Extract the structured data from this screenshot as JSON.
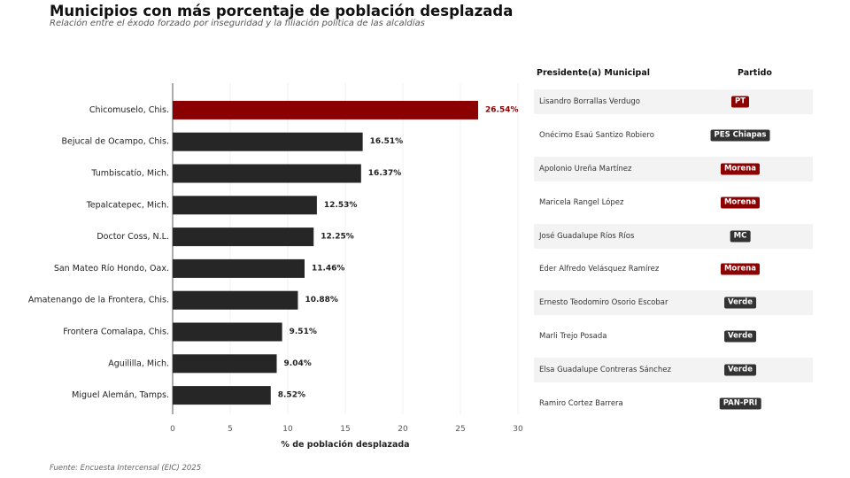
{
  "title": "Municipios con más porcentaje de población desplazada",
  "subtitle": "Relación entre el éxodo forzado por inseguridad y la filiación política de las alcaldías",
  "source": "Fuente: Encuesta Intercensal (EIC) 2025",
  "colors": {
    "highlight": "#8b0000",
    "bar": "#262626",
    "grid": "#f0f0f0",
    "axis": "#333333"
  },
  "chart_data": {
    "type": "bar",
    "orientation": "horizontal",
    "categories": [
      "Chicomuselo, Chis.",
      "Bejucal de Ocampo, Chis.",
      "Tumbiscatío, Mich.",
      "Tepalcatepec, Mich.",
      "Doctor Coss, N.L.",
      "San Mateo Río Hondo, Oax.",
      "Amatenango de la Frontera, Chis.",
      "Frontera Comalapa, Chis.",
      "Aguililla, Mich.",
      "Miguel Alemán, Tamps."
    ],
    "values": [
      26.54,
      16.51,
      16.37,
      12.53,
      12.25,
      11.46,
      10.88,
      9.51,
      9.04,
      8.52
    ],
    "value_labels": [
      "26.54%",
      "16.51%",
      "16.37%",
      "12.53%",
      "12.25%",
      "11.46%",
      "10.88%",
      "9.51%",
      "9.04%",
      "8.52%"
    ],
    "highlight_index": 0,
    "xlabel": "% de población desplazada",
    "ylabel": "",
    "xlim": [
      0,
      30
    ],
    "xticks": [
      0,
      5,
      10,
      15,
      20,
      25,
      30
    ],
    "grid": true
  },
  "table": {
    "header_president": "Presidente(a) Municipal",
    "header_party": "Partido",
    "rows": [
      {
        "name": "Lisandro Borrallas Verdugo",
        "party": "PT",
        "color": "#8b0000"
      },
      {
        "name": "Onécimo Esaú Santizo Robiero",
        "party": "PES Chiapas",
        "color": "#333333"
      },
      {
        "name": "Apolonio Ureña Martínez",
        "party": "Morena",
        "color": "#8b0000"
      },
      {
        "name": "Maricela Rangel López",
        "party": "Morena",
        "color": "#8b0000"
      },
      {
        "name": "José Guadalupe Ríos Ríos",
        "party": "MC",
        "color": "#333333"
      },
      {
        "name": "Eder Alfredo Velásquez Ramírez",
        "party": "Morena",
        "color": "#8b0000"
      },
      {
        "name": "Ernesto Teodomiro Osorio Escobar",
        "party": "Verde",
        "color": "#333333"
      },
      {
        "name": "Marli Trejo Posada",
        "party": "Verde",
        "color": "#333333"
      },
      {
        "name": "Elsa Guadalupe Contreras Sánchez",
        "party": "Verde",
        "color": "#333333"
      },
      {
        "name": "Ramiro Cortez Barrera",
        "party": "PAN-PRI",
        "color": "#333333"
      }
    ]
  }
}
